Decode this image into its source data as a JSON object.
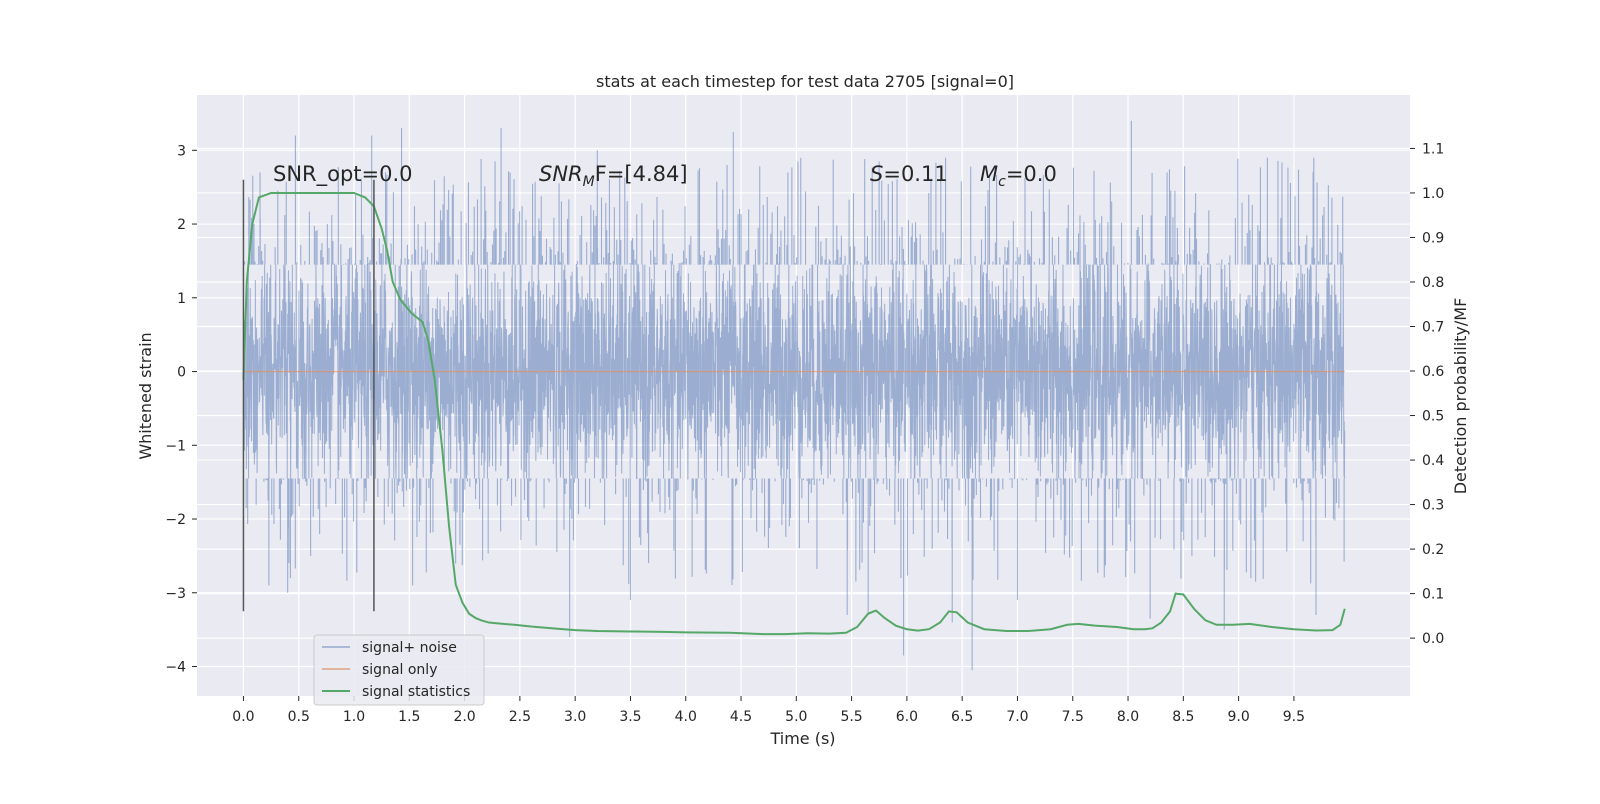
{
  "chart_data": {
    "type": "line",
    "title": "stats at each timestep for test data 2705 [signal=0]",
    "xlabel": "Time (s)",
    "ylabel": "Whitened strain",
    "y2label": "Detection probability/MF",
    "xlim": [
      -0.42,
      10.55
    ],
    "ylim": [
      -4.4,
      3.75
    ],
    "y2lim": [
      -0.13,
      1.22
    ],
    "xticks": [
      0.0,
      0.5,
      1.0,
      1.5,
      2.0,
      2.5,
      3.0,
      3.5,
      4.0,
      4.5,
      5.0,
      5.5,
      6.0,
      6.5,
      7.0,
      7.5,
      8.0,
      8.5,
      9.0,
      9.5
    ],
    "xtick_labels": [
      "0.0",
      "0.5",
      "1.0",
      "1.5",
      "2.0",
      "2.5",
      "3.0",
      "3.5",
      "4.0",
      "4.5",
      "5.0",
      "5.5",
      "6.0",
      "6.5",
      "7.0",
      "7.5",
      "8.0",
      "8.5",
      "9.0",
      "9.5"
    ],
    "yticks": [
      -4,
      -3,
      -2,
      -1,
      0,
      1,
      2,
      3
    ],
    "ytick_labels": [
      "−4",
      "−3",
      "−2",
      "−1",
      "0",
      "1",
      "2",
      "3"
    ],
    "y2ticks": [
      0.0,
      0.1,
      0.2,
      0.3,
      0.4,
      0.5,
      0.6,
      0.7,
      0.8,
      0.9,
      1.0,
      1.1
    ],
    "y2tick_labels": [
      "0.0",
      "0.1",
      "0.2",
      "0.3",
      "0.4",
      "0.5",
      "0.6",
      "0.7",
      "0.8",
      "0.9",
      "1.0",
      "1.1"
    ],
    "grid": true,
    "legend_position": "lower-left",
    "annotations": {
      "snr_opt": "SNR_opt=0.0",
      "snr_mf_main": "SNR",
      "snr_mf_sub": "M",
      "snr_mf_rest": "F=[4.84]",
      "s_label": "S",
      "s_value": "=0.11",
      "mc_label": "M",
      "mc_sub": "c",
      "mc_value": "=0.0"
    },
    "vlines": [
      {
        "x": 0.0,
        "y_range": [
          -3.25,
          2.6
        ]
      },
      {
        "x": 1.18,
        "y_range": [
          -3.25,
          2.6
        ]
      }
    ],
    "series": [
      {
        "name": "signal+ noise",
        "color": "#4c72b0",
        "x_range": [
          0.0,
          9.96
        ],
        "envelope": [
          -1.45,
          1.45
        ],
        "peaks": [
          [
            0.15,
            2.7
          ],
          [
            0.47,
            3.2
          ],
          [
            1.16,
            3.2
          ],
          [
            1.43,
            3.3
          ],
          [
            2.33,
            3.3
          ],
          [
            3.2,
            3.0
          ],
          [
            4.43,
            3.25
          ],
          [
            6.35,
            2.9
          ],
          [
            8.03,
            3.4
          ],
          [
            9.26,
            2.9
          ],
          [
            9.68,
            2.9
          ]
        ],
        "troughs": [
          [
            0.23,
            -2.9
          ],
          [
            0.4,
            -3.0
          ],
          [
            1.53,
            -2.9
          ],
          [
            2.95,
            -3.6
          ],
          [
            3.5,
            -3.1
          ],
          [
            5.46,
            -3.3
          ],
          [
            5.65,
            -3.3
          ],
          [
            5.97,
            -3.85
          ],
          [
            6.41,
            -3.4
          ],
          [
            6.59,
            -4.05
          ],
          [
            7.0,
            -3.1
          ],
          [
            8.2,
            -3.35
          ],
          [
            8.87,
            -3.5
          ],
          [
            9.7,
            -3.3
          ]
        ]
      },
      {
        "name": "signal only",
        "color": "#dd8452",
        "x": [
          0.0,
          9.96
        ],
        "y": [
          0.0,
          0.0
        ]
      },
      {
        "name": "signal statistics",
        "color": "#55a868",
        "axis": "right",
        "x": [
          0.0,
          0.03,
          0.08,
          0.14,
          0.25,
          0.4,
          0.55,
          0.7,
          0.85,
          1.0,
          1.1,
          1.18,
          1.25,
          1.3,
          1.35,
          1.42,
          1.52,
          1.62,
          1.67,
          1.73,
          1.8,
          1.86,
          1.92,
          1.98,
          2.04,
          2.1,
          2.15,
          2.22,
          2.3,
          2.45,
          2.6,
          2.8,
          3.0,
          3.2,
          3.5,
          3.8,
          4.0,
          4.4,
          4.7,
          4.9,
          5.1,
          5.3,
          5.45,
          5.55,
          5.65,
          5.72,
          5.8,
          5.9,
          6.0,
          6.1,
          6.2,
          6.3,
          6.38,
          6.45,
          6.55,
          6.7,
          6.9,
          7.1,
          7.3,
          7.45,
          7.55,
          7.7,
          7.9,
          8.05,
          8.15,
          8.22,
          8.3,
          8.38,
          8.43,
          8.5,
          8.6,
          8.7,
          8.8,
          8.95,
          9.1,
          9.3,
          9.5,
          9.7,
          9.85,
          9.92,
          9.96
        ],
        "y": [
          0.58,
          0.8,
          0.93,
          0.99,
          1.0,
          1.0,
          1.0,
          1.0,
          1.0,
          1.0,
          0.99,
          0.97,
          0.92,
          0.87,
          0.8,
          0.76,
          0.73,
          0.71,
          0.67,
          0.58,
          0.42,
          0.25,
          0.12,
          0.08,
          0.055,
          0.045,
          0.04,
          0.035,
          0.033,
          0.03,
          0.026,
          0.022,
          0.018,
          0.016,
          0.015,
          0.014,
          0.013,
          0.012,
          0.009,
          0.009,
          0.011,
          0.01,
          0.012,
          0.025,
          0.055,
          0.062,
          0.045,
          0.028,
          0.02,
          0.017,
          0.02,
          0.035,
          0.06,
          0.058,
          0.035,
          0.02,
          0.016,
          0.016,
          0.02,
          0.03,
          0.032,
          0.028,
          0.025,
          0.02,
          0.02,
          0.022,
          0.035,
          0.06,
          0.1,
          0.098,
          0.065,
          0.04,
          0.03,
          0.03,
          0.032,
          0.025,
          0.02,
          0.017,
          0.018,
          0.03,
          0.066
        ]
      }
    ]
  }
}
